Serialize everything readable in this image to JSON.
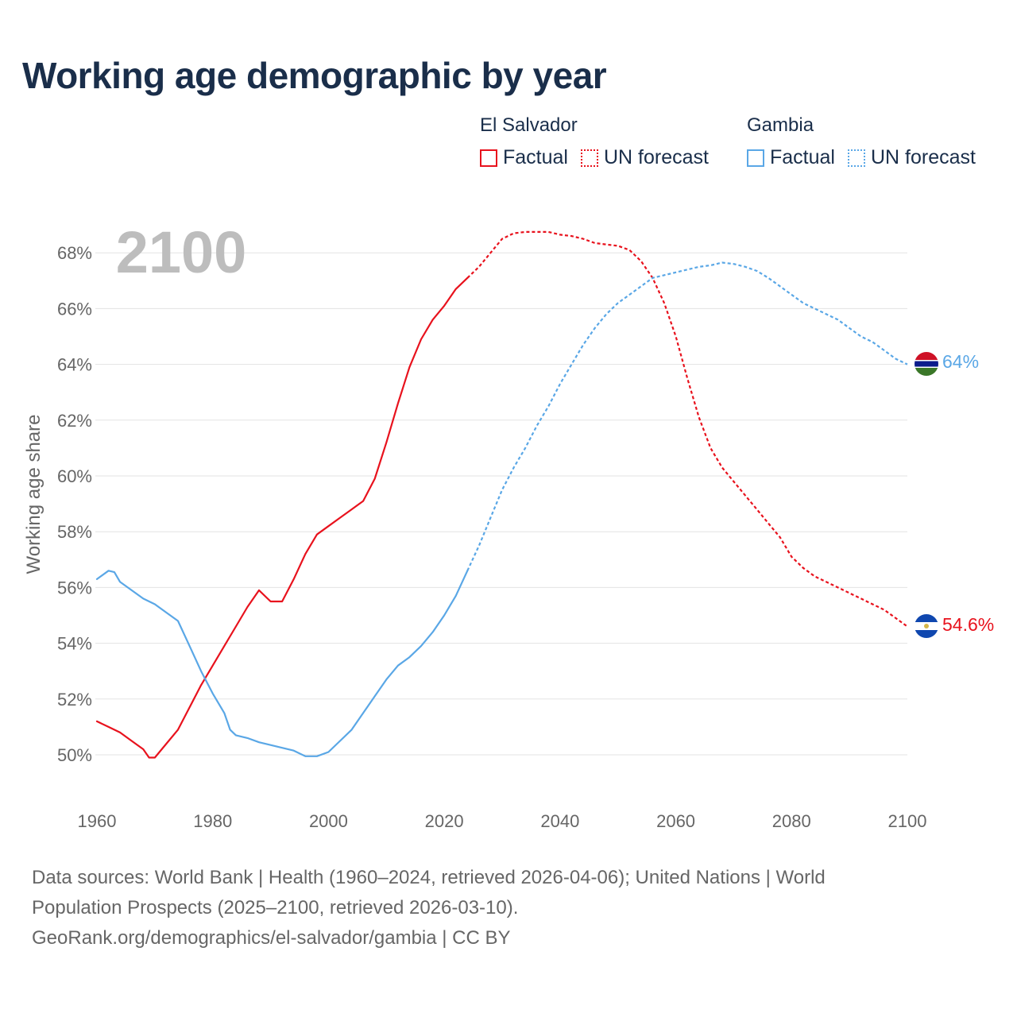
{
  "title": "Working age demographic by year",
  "legend": {
    "groups": [
      {
        "country": "El Salvador",
        "factual_label": "Factual",
        "forecast_label": "UN forecast",
        "color": "#e8121d"
      },
      {
        "country": "Gambia",
        "factual_label": "Factual",
        "forecast_label": "UN forecast",
        "color": "#5aa7e6"
      }
    ]
  },
  "year_label": "2100",
  "end_labels": {
    "el_salvador": "54.6%",
    "gambia": "64%"
  },
  "footer": {
    "line1": "Data sources: World Bank | Health (1960–2024, retrieved 2026-04-06); United Nations | World",
    "line2": "Population Prospects (2025–2100, retrieved 2026-03-10).",
    "line3": "GeoRank.org/demographics/el-salvador/gambia | CC BY"
  },
  "chart_data": {
    "type": "line",
    "title": "Working age demographic by year",
    "xlabel": "",
    "ylabel": "Working age share",
    "xlim": [
      1960,
      2100
    ],
    "ylim": [
      48.5,
      69
    ],
    "xticks": [
      1960,
      1980,
      2000,
      2020,
      2040,
      2060,
      2080,
      2100
    ],
    "xtick_labels": [
      "1960",
      "1980",
      "2000",
      "2020",
      "2040",
      "2060",
      "2080",
      "2100"
    ],
    "yticks": [
      50,
      52,
      54,
      56,
      58,
      60,
      62,
      64,
      66,
      68
    ],
    "ytick_labels": [
      "50%",
      "52%",
      "54%",
      "56%",
      "58%",
      "60%",
      "62%",
      "64%",
      "66%",
      "68%"
    ],
    "forecast_start": 2024,
    "series": [
      {
        "name": "El Salvador",
        "color": "#e8121d",
        "points": [
          [
            1960,
            51.2
          ],
          [
            1962,
            51.0
          ],
          [
            1964,
            50.8
          ],
          [
            1966,
            50.5
          ],
          [
            1968,
            50.2
          ],
          [
            1969,
            49.9
          ],
          [
            1970,
            49.9
          ],
          [
            1972,
            50.4
          ],
          [
            1974,
            50.9
          ],
          [
            1976,
            51.7
          ],
          [
            1978,
            52.5
          ],
          [
            1980,
            53.2
          ],
          [
            1982,
            53.9
          ],
          [
            1984,
            54.6
          ],
          [
            1986,
            55.3
          ],
          [
            1988,
            55.9
          ],
          [
            1990,
            55.5
          ],
          [
            1992,
            55.5
          ],
          [
            1994,
            56.3
          ],
          [
            1996,
            57.2
          ],
          [
            1998,
            57.9
          ],
          [
            2000,
            58.2
          ],
          [
            2002,
            58.5
          ],
          [
            2004,
            58.8
          ],
          [
            2006,
            59.1
          ],
          [
            2008,
            59.9
          ],
          [
            2010,
            61.2
          ],
          [
            2012,
            62.6
          ],
          [
            2014,
            63.9
          ],
          [
            2016,
            64.9
          ],
          [
            2018,
            65.6
          ],
          [
            2020,
            66.1
          ],
          [
            2022,
            66.7
          ],
          [
            2024,
            67.1
          ],
          [
            2026,
            67.5
          ],
          [
            2028,
            68.0
          ],
          [
            2030,
            68.5
          ],
          [
            2032,
            68.7
          ],
          [
            2034,
            68.75
          ],
          [
            2038,
            68.75
          ],
          [
            2040,
            68.65
          ],
          [
            2042,
            68.6
          ],
          [
            2044,
            68.5
          ],
          [
            2046,
            68.35
          ],
          [
            2048,
            68.3
          ],
          [
            2050,
            68.25
          ],
          [
            2052,
            68.1
          ],
          [
            2054,
            67.7
          ],
          [
            2056,
            67.1
          ],
          [
            2058,
            66.2
          ],
          [
            2060,
            65.0
          ],
          [
            2062,
            63.5
          ],
          [
            2064,
            62.1
          ],
          [
            2066,
            61.0
          ],
          [
            2068,
            60.3
          ],
          [
            2070,
            59.8
          ],
          [
            2072,
            59.3
          ],
          [
            2074,
            58.8
          ],
          [
            2076,
            58.3
          ],
          [
            2078,
            57.8
          ],
          [
            2080,
            57.1
          ],
          [
            2082,
            56.7
          ],
          [
            2084,
            56.4
          ],
          [
            2086,
            56.2
          ],
          [
            2088,
            56.0
          ],
          [
            2090,
            55.8
          ],
          [
            2092,
            55.6
          ],
          [
            2094,
            55.4
          ],
          [
            2096,
            55.2
          ],
          [
            2098,
            54.9
          ],
          [
            2100,
            54.6
          ]
        ]
      },
      {
        "name": "Gambia",
        "color": "#5aa7e6",
        "points": [
          [
            1960,
            56.3
          ],
          [
            1962,
            56.6
          ],
          [
            1963,
            56.55
          ],
          [
            1964,
            56.2
          ],
          [
            1966,
            55.9
          ],
          [
            1968,
            55.6
          ],
          [
            1970,
            55.4
          ],
          [
            1972,
            55.1
          ],
          [
            1974,
            54.8
          ],
          [
            1976,
            53.9
          ],
          [
            1978,
            53.0
          ],
          [
            1980,
            52.2
          ],
          [
            1982,
            51.5
          ],
          [
            1983,
            50.9
          ],
          [
            1984,
            50.7
          ],
          [
            1986,
            50.6
          ],
          [
            1988,
            50.45
          ],
          [
            1990,
            50.35
          ],
          [
            1992,
            50.25
          ],
          [
            1994,
            50.15
          ],
          [
            1996,
            49.95
          ],
          [
            1998,
            49.95
          ],
          [
            2000,
            50.1
          ],
          [
            2002,
            50.5
          ],
          [
            2004,
            50.9
          ],
          [
            2006,
            51.5
          ],
          [
            2008,
            52.1
          ],
          [
            2010,
            52.7
          ],
          [
            2012,
            53.2
          ],
          [
            2014,
            53.5
          ],
          [
            2016,
            53.9
          ],
          [
            2018,
            54.4
          ],
          [
            2020,
            55.0
          ],
          [
            2022,
            55.7
          ],
          [
            2024,
            56.6
          ],
          [
            2026,
            57.5
          ],
          [
            2028,
            58.5
          ],
          [
            2030,
            59.5
          ],
          [
            2032,
            60.3
          ],
          [
            2034,
            61.0
          ],
          [
            2036,
            61.8
          ],
          [
            2038,
            62.5
          ],
          [
            2040,
            63.3
          ],
          [
            2042,
            64.0
          ],
          [
            2044,
            64.7
          ],
          [
            2046,
            65.3
          ],
          [
            2048,
            65.8
          ],
          [
            2050,
            66.2
          ],
          [
            2052,
            66.5
          ],
          [
            2054,
            66.8
          ],
          [
            2056,
            67.1
          ],
          [
            2058,
            67.2
          ],
          [
            2060,
            67.3
          ],
          [
            2062,
            67.4
          ],
          [
            2064,
            67.5
          ],
          [
            2066,
            67.55
          ],
          [
            2068,
            67.65
          ],
          [
            2070,
            67.6
          ],
          [
            2072,
            67.5
          ],
          [
            2074,
            67.35
          ],
          [
            2076,
            67.1
          ],
          [
            2078,
            66.8
          ],
          [
            2080,
            66.5
          ],
          [
            2082,
            66.2
          ],
          [
            2084,
            66.0
          ],
          [
            2086,
            65.8
          ],
          [
            2088,
            65.6
          ],
          [
            2090,
            65.3
          ],
          [
            2092,
            65.0
          ],
          [
            2094,
            64.8
          ],
          [
            2096,
            64.5
          ],
          [
            2098,
            64.2
          ],
          [
            2100,
            64.0
          ]
        ]
      }
    ]
  }
}
